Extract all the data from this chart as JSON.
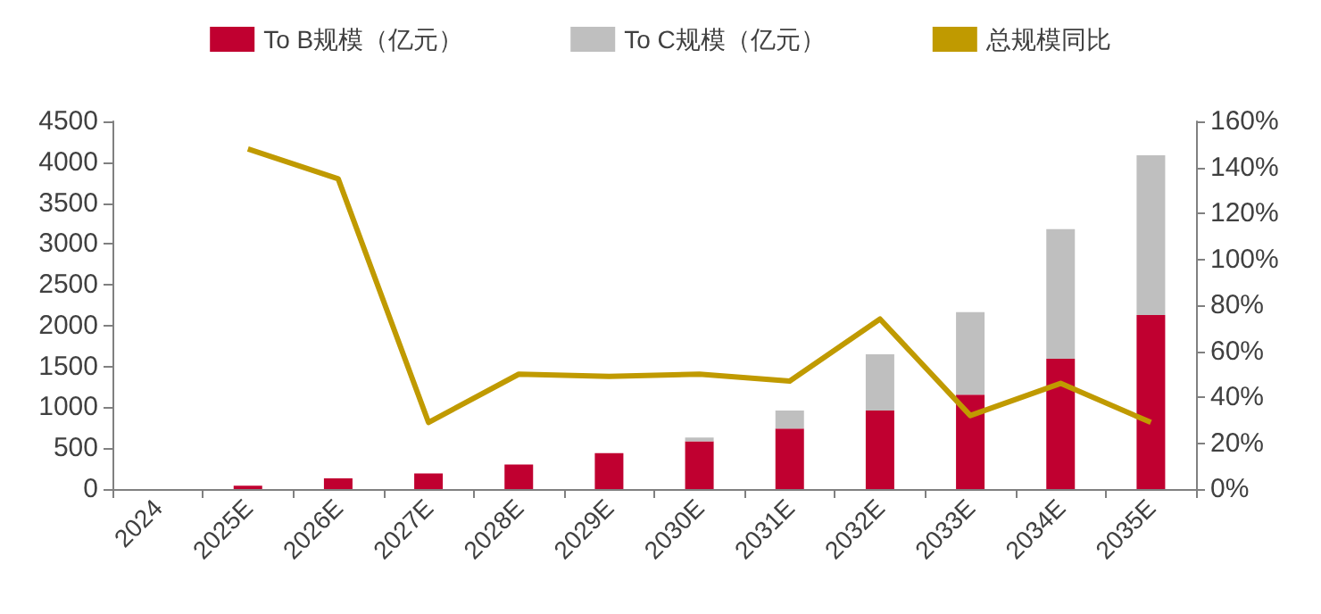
{
  "chart_data": {
    "type": "bar",
    "stacked": true,
    "categories": [
      "2024",
      "2025E",
      "2026E",
      "2027E",
      "2028E",
      "2029E",
      "2030E",
      "2031E",
      "2032E",
      "2033E",
      "2034E",
      "2035E"
    ],
    "series": [
      {
        "name": "To B规模（亿元）",
        "color": "#c00030",
        "values": [
          0,
          40,
          130,
          190,
          300,
          440,
          585,
          740,
          960,
          1155,
          1595,
          2130
        ]
      },
      {
        "name": "To C规模（亿元）",
        "color": "#bfbfbf",
        "values": [
          0,
          0,
          0,
          0,
          0,
          0,
          45,
          220,
          690,
          1010,
          1585,
          1955
        ]
      },
      {
        "name": "总规模同比",
        "type": "line",
        "axis": "y2",
        "color": "#c09a00",
        "values": [
          null,
          148,
          135,
          29,
          50,
          49,
          50,
          47,
          74,
          32,
          46,
          29
        ]
      }
    ],
    "ylim": [
      0,
      4500
    ],
    "yticks": [
      0,
      500,
      1000,
      1500,
      2000,
      2500,
      3000,
      3500,
      4000,
      4500
    ],
    "y2lim": [
      0,
      160
    ],
    "y2ticks": [
      {
        "value": 0,
        "label": "0%"
      },
      {
        "value": 20,
        "label": "20%"
      },
      {
        "value": 40,
        "label": "40%"
      },
      {
        "value": 60,
        "label": "60%"
      },
      {
        "value": 80,
        "label": "80%"
      },
      {
        "value": 100,
        "label": "100%"
      },
      {
        "value": 120,
        "label": "120%"
      },
      {
        "value": 140,
        "label": "140%"
      },
      {
        "value": 160,
        "label": "160%"
      }
    ],
    "grid": false,
    "legend": "top",
    "marker": "none"
  }
}
